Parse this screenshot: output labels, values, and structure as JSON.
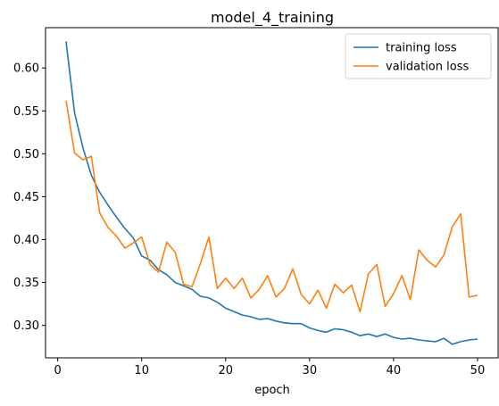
{
  "chart_data": {
    "type": "line",
    "title": "model_4_training",
    "xlabel": "epoch",
    "ylabel": "",
    "xlim": [
      -1.45,
      52.45
    ],
    "ylim": [
      0.2622,
      0.647
    ],
    "xticks": [
      0,
      10,
      20,
      30,
      40,
      50
    ],
    "yticks": [
      0.3,
      0.35,
      0.4,
      0.45,
      0.5,
      0.55,
      0.6
    ],
    "grid": false,
    "legend_position": "top-right",
    "x": [
      1,
      2,
      3,
      4,
      5,
      6,
      7,
      8,
      9,
      10,
      11,
      12,
      13,
      14,
      15,
      16,
      17,
      18,
      19,
      20,
      21,
      22,
      23,
      24,
      25,
      26,
      27,
      28,
      29,
      30,
      31,
      32,
      33,
      34,
      35,
      36,
      37,
      38,
      39,
      40,
      41,
      42,
      43,
      44,
      45,
      46,
      47,
      48,
      49,
      50
    ],
    "series": [
      {
        "name": "training loss",
        "color": "#1f77b4",
        "values": [
          0.631,
          0.548,
          0.507,
          0.475,
          0.455,
          0.44,
          0.426,
          0.413,
          0.402,
          0.381,
          0.376,
          0.365,
          0.359,
          0.35,
          0.346,
          0.342,
          0.334,
          0.332,
          0.327,
          0.32,
          0.316,
          0.312,
          0.31,
          0.307,
          0.308,
          0.305,
          0.303,
          0.302,
          0.302,
          0.297,
          0.294,
          0.292,
          0.296,
          0.295,
          0.292,
          0.288,
          0.29,
          0.287,
          0.29,
          0.286,
          0.284,
          0.285,
          0.283,
          0.282,
          0.281,
          0.285,
          0.278,
          0.281,
          0.283,
          0.284
        ]
      },
      {
        "name": "validation loss",
        "color": "#ff7f0e",
        "values": [
          0.562,
          0.501,
          0.493,
          0.497,
          0.431,
          0.414,
          0.404,
          0.39,
          0.396,
          0.403,
          0.371,
          0.362,
          0.397,
          0.385,
          0.348,
          0.345,
          0.372,
          0.403,
          0.343,
          0.355,
          0.343,
          0.355,
          0.332,
          0.342,
          0.358,
          0.333,
          0.343,
          0.366,
          0.336,
          0.325,
          0.341,
          0.32,
          0.348,
          0.338,
          0.347,
          0.316,
          0.36,
          0.371,
          0.322,
          0.337,
          0.358,
          0.33,
          0.388,
          0.376,
          0.368,
          0.382,
          0.415,
          0.43,
          0.333,
          0.335
        ]
      }
    ]
  }
}
